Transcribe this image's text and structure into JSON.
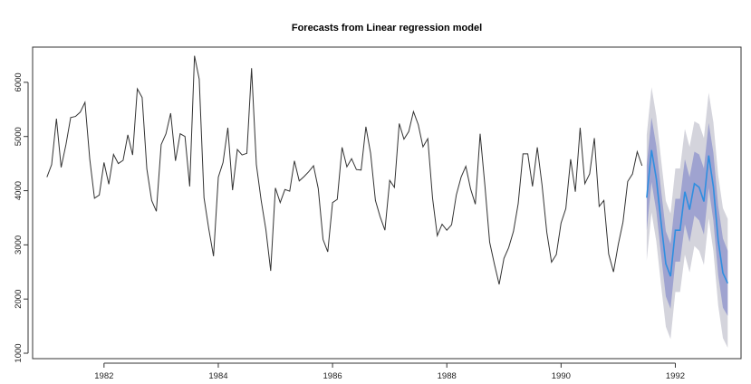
{
  "chart_data": {
    "type": "line",
    "title": "Forecasts from Linear regression model",
    "xlabel": "",
    "ylabel": "",
    "xlim": [
      1980.75,
      1993.15
    ],
    "ylim": [
      900,
      6650
    ],
    "x_ticks": [
      1982,
      1984,
      1986,
      1988,
      1990,
      1992
    ],
    "y_ticks": [
      1000,
      2000,
      3000,
      4000,
      5000,
      6000
    ],
    "grid": false,
    "legend": "none",
    "colors": {
      "history": "#333333",
      "forecast": "#2f8ee0",
      "band_80": "#9fa3d0",
      "band_95": "#d4d4dc",
      "axis": "#333333"
    },
    "series": [
      {
        "role": "history",
        "start": 1981.0,
        "step": 0.08333333,
        "values": [
          4250,
          4480,
          5330,
          4430,
          4850,
          5350,
          5370,
          5450,
          5630,
          4580,
          3860,
          3920,
          4520,
          4120,
          4670,
          4500,
          4560,
          5030,
          4660,
          5880,
          5720,
          4400,
          3820,
          3620,
          4850,
          5050,
          5430,
          4550,
          5050,
          5000,
          4080,
          6490,
          6060,
          3870,
          3300,
          2790,
          4250,
          4520,
          5160,
          4010,
          4760,
          4660,
          4690,
          6260,
          4480,
          3820,
          3280,
          2520,
          4050,
          3780,
          4020,
          3990,
          4550,
          4180,
          4260,
          4350,
          4460,
          4040,
          3100,
          2870,
          3780,
          3840,
          4800,
          4440,
          4590,
          4390,
          4380,
          5180,
          4690,
          3820,
          3520,
          3270,
          4190,
          4060,
          5240,
          4950,
          5090,
          5460,
          5220,
          4810,
          4960,
          3860,
          3170,
          3380,
          3270,
          3370,
          3920,
          4250,
          4450,
          4030,
          3750,
          5050,
          4090,
          3050,
          2640,
          2270,
          2750,
          2950,
          3250,
          3760,
          4680,
          4680,
          4080,
          4800,
          4110,
          3230,
          2680,
          2820,
          3400,
          3670,
          4580,
          3980,
          5160,
          4130,
          4310,
          4970,
          3710,
          3820,
          2830,
          2500,
          3000,
          3420,
          4170,
          4310,
          4720,
          4460
        ]
      },
      {
        "role": "forecast",
        "start": 1991.5,
        "step": 0.08333333,
        "values": [
          3870,
          4750,
          4220,
          3420,
          2650,
          2420,
          3270,
          3270,
          3980,
          3650,
          4130,
          4060,
          3800,
          4650,
          4070,
          3080,
          2480,
          2290
        ],
        "lo80": [
          3270,
          4160,
          3620,
          2820,
          2050,
          1820,
          2690,
          2690,
          3380,
          3050,
          3540,
          3450,
          3190,
          4050,
          3440,
          2440,
          1840,
          1690
        ],
        "hi80": [
          4470,
          5350,
          4820,
          4020,
          3250,
          3020,
          3850,
          3850,
          4580,
          4250,
          4720,
          4670,
          4410,
          5250,
          4700,
          3720,
          3120,
          2890
        ],
        "lo95": [
          2710,
          3600,
          3060,
          2260,
          1490,
          1260,
          2130,
          2130,
          2820,
          2490,
          2980,
          2890,
          2630,
          3490,
          2880,
          1880,
          1280,
          1100
        ],
        "hi95": [
          5030,
          5910,
          5380,
          4580,
          3810,
          3580,
          4410,
          4410,
          5140,
          4810,
          5280,
          5230,
          4970,
          5810,
          5260,
          4280,
          3680,
          3480
        ]
      }
    ]
  }
}
